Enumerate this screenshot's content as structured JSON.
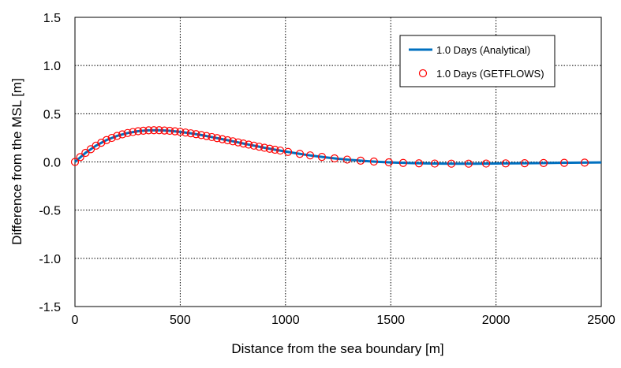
{
  "chart_data": {
    "type": "line",
    "title": "",
    "xlabel": "Distance from the sea boundary [m]",
    "ylabel": "Difference from the MSL [m]",
    "xlim": [
      0,
      2500
    ],
    "ylim": [
      -1.5,
      1.5
    ],
    "xticks": [
      0,
      500,
      1000,
      1500,
      2000,
      2500
    ],
    "xtick_labels": [
      "0",
      "500",
      "1000",
      "1500",
      "2000",
      "2500"
    ],
    "yticks": [
      1.5,
      1.0,
      0.5,
      0.0,
      -0.5,
      -1.0,
      -1.5
    ],
    "ytick_labels": [
      "1.5",
      "1.0",
      "0.5",
      "0.0",
      "-0.5",
      "-1.0",
      "-1.5"
    ],
    "grid": true,
    "legend_position": "top-right",
    "series": [
      {
        "name": "1.0 Days (Analytical)",
        "style": "line",
        "color": "#0070c0",
        "x": [
          0,
          50,
          100,
          150,
          200,
          250,
          300,
          350,
          400,
          450,
          500,
          550,
          600,
          650,
          700,
          750,
          800,
          850,
          900,
          950,
          1000,
          1050,
          1100,
          1150,
          1200,
          1250,
          1300,
          1350,
          1400,
          1450,
          1500,
          1600,
          1700,
          1800,
          1900,
          2000,
          2100,
          2200,
          2300,
          2400,
          2500
        ],
        "y": [
          0,
          0.094,
          0.169,
          0.227,
          0.27,
          0.3,
          0.319,
          0.328,
          0.329,
          0.323,
          0.312,
          0.297,
          0.279,
          0.258,
          0.236,
          0.214,
          0.191,
          0.169,
          0.147,
          0.127,
          0.108,
          0.09,
          0.073,
          0.058,
          0.045,
          0.033,
          0.023,
          0.014,
          0.006,
          0,
          -0.005,
          -0.0125,
          -0.0165,
          -0.018,
          -0.018,
          -0.016,
          -0.014,
          -0.012,
          -0.009,
          -0.007,
          -0.005
        ]
      },
      {
        "name": "1.0 Days (GETFLOWS)",
        "style": "marker",
        "color": "#ff0000",
        "x": [
          0,
          25,
          50,
          75,
          100,
          125,
          150,
          175,
          200,
          225,
          250,
          275,
          300,
          325,
          350,
          375,
          400,
          425,
          450,
          475,
          500,
          525,
          550,
          575,
          600,
          625,
          650,
          675,
          700,
          725,
          750,
          775,
          800,
          825,
          850,
          875,
          900,
          925,
          950,
          975,
          1012,
          1068,
          1117,
          1173,
          1233,
          1293,
          1357,
          1420,
          1491,
          1559,
          1634,
          1709,
          1788,
          1870,
          1953,
          2046,
          2136,
          2226,
          2324,
          2421
        ],
        "y": [
          0,
          0.05,
          0.094,
          0.132,
          0.169,
          0.199,
          0.227,
          0.249,
          0.27,
          0.286,
          0.3,
          0.31,
          0.319,
          0.324,
          0.328,
          0.329,
          0.329,
          0.326,
          0.323,
          0.318,
          0.312,
          0.305,
          0.297,
          0.288,
          0.279,
          0.269,
          0.258,
          0.247,
          0.236,
          0.225,
          0.214,
          0.203,
          0.191,
          0.18,
          0.169,
          0.158,
          0.147,
          0.137,
          0.127,
          0.118,
          0.104,
          0.084,
          0.068,
          0.052,
          0.037,
          0.024,
          0.013,
          0.004,
          -0.004,
          -0.01,
          -0.014,
          -0.017,
          -0.018,
          -0.018,
          -0.017,
          -0.015,
          -0.013,
          -0.011,
          -0.009,
          -0.007
        ]
      }
    ]
  }
}
